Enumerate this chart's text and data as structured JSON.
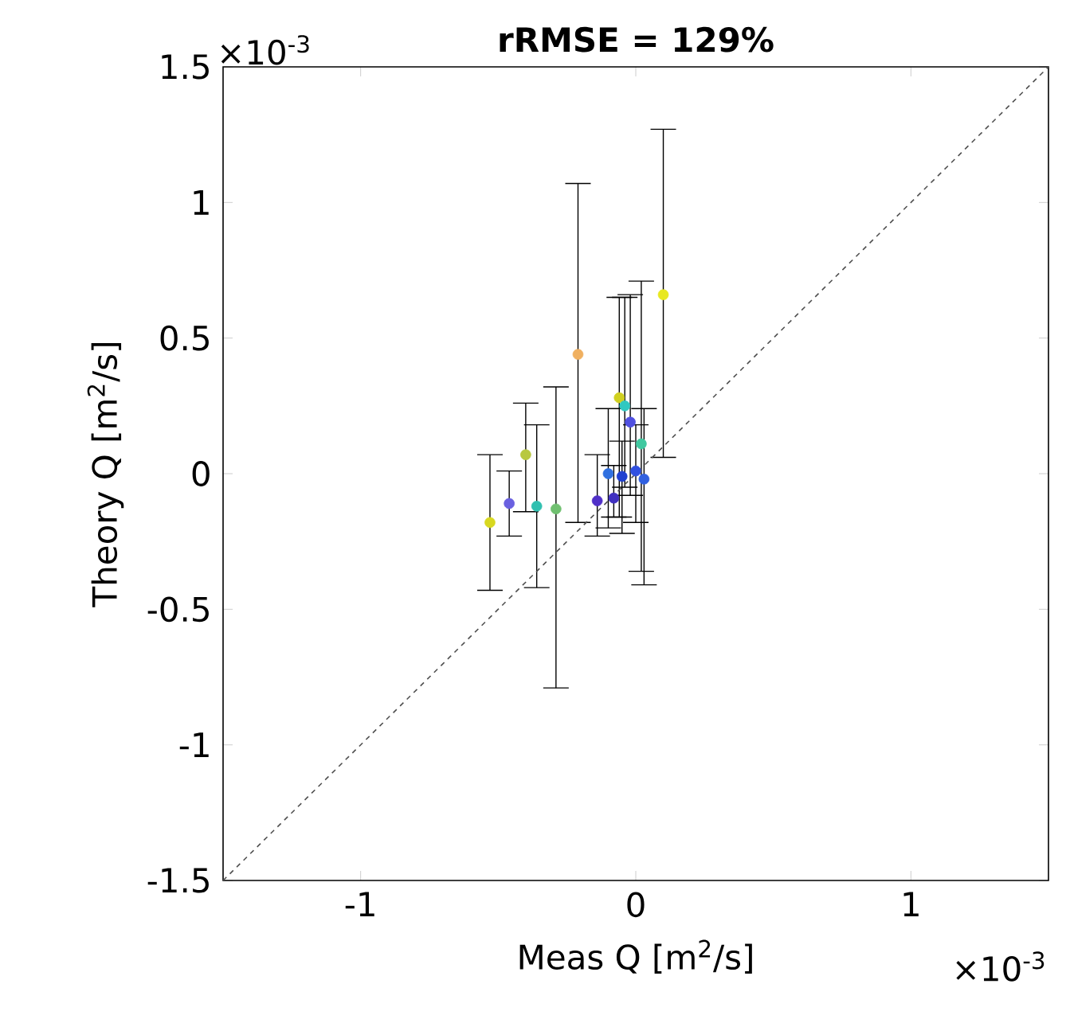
{
  "chart_data": {
    "type": "scatter",
    "title": "**rRMSE = 129%**",
    "xlabel": "Meas Q [m$^{2}$/s]",
    "ylabel": "Theory Q [m$^{2}$/s]",
    "annotations": [
      "×10$^{-3}$",
      "×10$^{-3}$"
    ],
    "xlim": [
      -1.5,
      1.5
    ],
    "ylim": [
      -1.5,
      1.5
    ],
    "xticks": [
      -1,
      0,
      1
    ],
    "yticks": [
      -1.5,
      -1,
      -0.5,
      0,
      0.5,
      1,
      1.5
    ],
    "series": [
      {
        "marker": "circle",
        "x": [
          -0.53,
          -0.46,
          -0.4,
          -0.36,
          -0.29,
          -0.21,
          0.1,
          -0.06,
          -0.04,
          -0.02,
          0.02,
          -0.1,
          -0.05,
          0.0,
          -0.14,
          -0.08,
          0.03
        ],
        "values": [
          -0.18,
          -0.11,
          0.07,
          -0.12,
          -0.13,
          0.44,
          0.66,
          0.28,
          0.25,
          0.19,
          0.11,
          0.0,
          -0.01,
          0.01,
          -0.1,
          -0.09,
          -0.02
        ],
        "errors": [
          [
            -0.43,
            0.07
          ],
          [
            -0.23,
            0.01
          ],
          [
            -0.14,
            0.26
          ],
          [
            -0.42,
            0.18
          ],
          [
            -0.79,
            0.32
          ],
          [
            -0.18,
            1.07
          ],
          [
            0.06,
            1.27
          ],
          [
            -0.16,
            0.65
          ],
          [
            -0.05,
            0.65
          ],
          [
            -0.08,
            0.66
          ],
          [
            -0.36,
            0.71
          ],
          [
            -0.2,
            0.24
          ],
          [
            -0.22,
            0.12
          ],
          [
            -0.18,
            0.18
          ],
          [
            -0.23,
            0.07
          ],
          [
            -0.16,
            0.03
          ],
          [
            -0.41,
            0.24
          ]
        ],
        "colors": [
          "#d8d820",
          "#6a60e0",
          "#b8c840",
          "#30c0b0",
          "#70c070",
          "#f0b060",
          "#e8e820",
          "#d0d020",
          "#30c8c0",
          "#5050e0",
          "#40c8a0",
          "#3070e0",
          "#2040d0",
          "#3050e0",
          "#5030c8",
          "#4030c0",
          "#3060e0"
        ]
      },
      {
        "type": "line",
        "x": [
          -1.5,
          1.5
        ],
        "values": [
          -1.5,
          1.5
        ],
        "color": "#505050",
        "line_style": "dashed",
        "marker": "none"
      }
    ]
  }
}
